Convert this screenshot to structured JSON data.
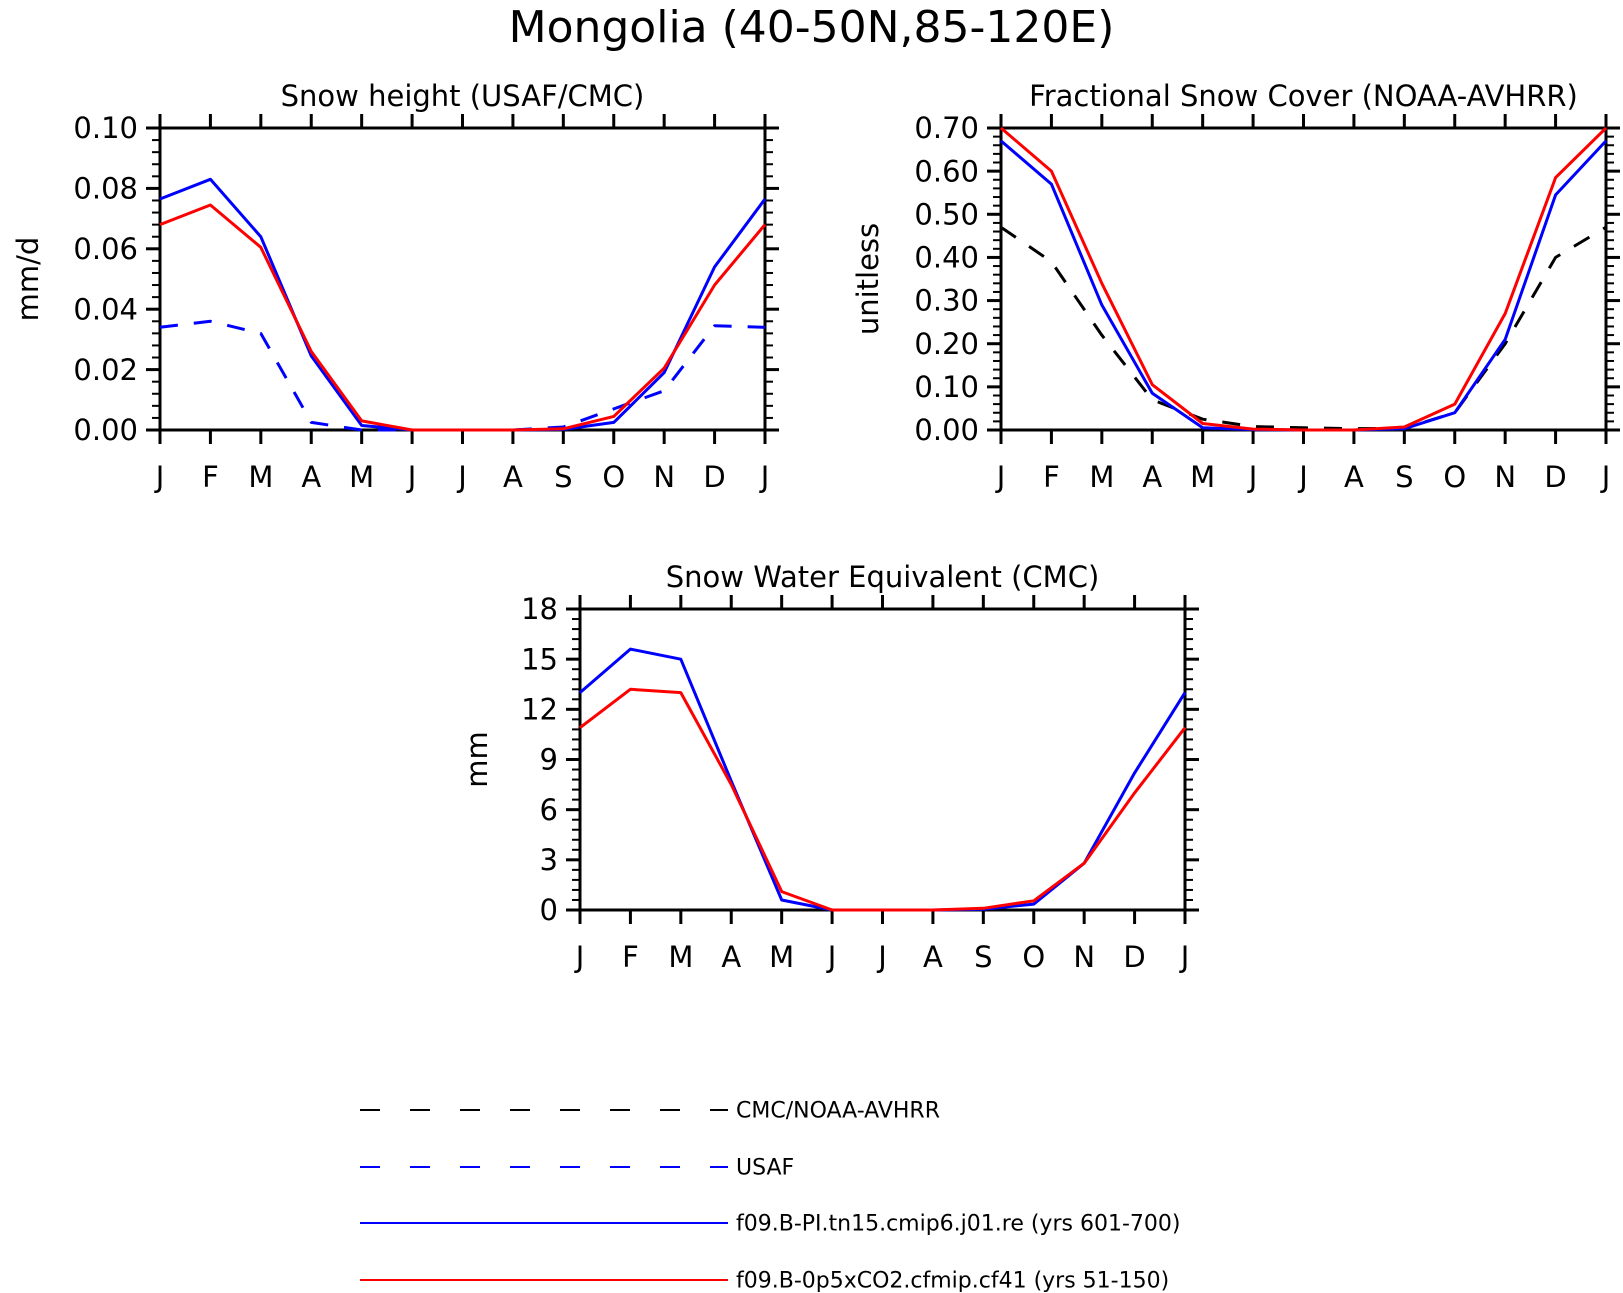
{
  "title": "Mongolia (40-50N,85-120E)",
  "colors": {
    "black": "#000000",
    "blue": "#0000ff",
    "red": "#ff0000"
  },
  "legend": [
    {
      "label": "CMC/NOAA-AVHRR",
      "color": "#000000",
      "dash": true
    },
    {
      "label": "USAF",
      "color": "#0000ff",
      "dash": true
    },
    {
      "label": "f09.B-PI.tn15.cmip6.j01.re (yrs 601-700)",
      "color": "#0000ff",
      "dash": false
    },
    {
      "label": "f09.B-0p5xCO2.cfmip.cf41 (yrs 51-150)",
      "color": "#ff0000",
      "dash": false
    }
  ],
  "chart_data": [
    {
      "type": "line",
      "title": "Snow height (USAF/CMC)",
      "ylabel": "mm/d",
      "xlabel": "",
      "ylim": [
        0,
        0.1
      ],
      "yticks": [
        "0.00",
        "0.02",
        "0.04",
        "0.06",
        "0.08",
        "0.10"
      ],
      "categories": [
        "J",
        "F",
        "M",
        "A",
        "M",
        "J",
        "J",
        "A",
        "S",
        "O",
        "N",
        "D",
        "J"
      ],
      "series": [
        {
          "name": "CMC/NOAA-AVHRR",
          "color": "#000000",
          "dash": true,
          "values": [
            0,
            0,
            0,
            0,
            0,
            0,
            0,
            0,
            0,
            0,
            0,
            0,
            0
          ]
        },
        {
          "name": "USAF",
          "color": "#0000ff",
          "dash": true,
          "values": [
            0.034,
            0.036,
            0.032,
            0.0025,
            0.0,
            0.0,
            0.0,
            0.0,
            0.001,
            0.007,
            0.013,
            0.0345,
            0.034
          ]
        },
        {
          "name": "f09.B-PI.tn15.cmip6.j01.re (yrs 601-700)",
          "color": "#0000ff",
          "dash": false,
          "values": [
            0.0765,
            0.083,
            0.064,
            0.0245,
            0.0015,
            0.0,
            0.0,
            0.0,
            0.0002,
            0.0025,
            0.019,
            0.054,
            0.0765
          ]
        },
        {
          "name": "f09.B-0p5xCO2.cfmip.cf41 (yrs 51-150)",
          "color": "#ff0000",
          "dash": false,
          "values": [
            0.068,
            0.0745,
            0.0605,
            0.026,
            0.003,
            0.0,
            0.0,
            0.0,
            0.0004,
            0.0045,
            0.0205,
            0.048,
            0.068
          ]
        }
      ]
    },
    {
      "type": "line",
      "title": "Fractional Snow Cover (NOAA-AVHRR)",
      "ylabel": "unitless",
      "xlabel": "",
      "ylim": [
        0,
        0.7
      ],
      "yticks": [
        "0.00",
        "0.10",
        "0.20",
        "0.30",
        "0.40",
        "0.50",
        "0.60",
        "0.70"
      ],
      "categories": [
        "J",
        "F",
        "M",
        "A",
        "M",
        "J",
        "J",
        "A",
        "S",
        "O",
        "N",
        "D",
        "J"
      ],
      "series": [
        {
          "name": "CMC/NOAA-AVHRR",
          "color": "#000000",
          "dash": true,
          "values": [
            0.47,
            0.39,
            0.22,
            0.07,
            0.025,
            0.008,
            0.005,
            0.003,
            0.004,
            0.04,
            0.2,
            0.4,
            0.47
          ]
        },
        {
          "name": "f09.B-PI.tn15.cmip6.j01.re (yrs 601-700)",
          "color": "#0000ff",
          "dash": false,
          "values": [
            0.67,
            0.57,
            0.29,
            0.085,
            0.005,
            0.001,
            0.0,
            0.0,
            0.003,
            0.04,
            0.21,
            0.545,
            0.67
          ]
        },
        {
          "name": "f09.B-0p5xCO2.cfmip.cf41 (yrs 51-150)",
          "color": "#ff0000",
          "dash": false,
          "values": [
            0.7,
            0.6,
            0.34,
            0.105,
            0.015,
            0.002,
            0.0,
            0.0,
            0.007,
            0.06,
            0.27,
            0.585,
            0.7
          ]
        }
      ]
    },
    {
      "type": "line",
      "title": "Snow Water Equivalent (CMC)",
      "ylabel": "mm",
      "xlabel": "",
      "ylim": [
        0,
        18
      ],
      "yticks": [
        "0",
        "3",
        "6",
        "9",
        "12",
        "15",
        "18"
      ],
      "categories": [
        "J",
        "F",
        "M",
        "A",
        "M",
        "J",
        "J",
        "A",
        "S",
        "O",
        "N",
        "D",
        "J"
      ],
      "series": [
        {
          "name": "CMC/NOAA-AVHRR",
          "color": "#000000",
          "dash": true,
          "values": [
            0,
            0,
            0,
            0,
            0,
            0,
            0,
            0,
            0,
            0,
            0,
            0,
            0
          ]
        },
        {
          "name": "f09.B-PI.tn15.cmip6.j01.re (yrs 601-700)",
          "color": "#0000ff",
          "dash": false,
          "values": [
            13.0,
            15.6,
            15.0,
            7.7,
            0.6,
            0.0,
            0.0,
            0.0,
            0.05,
            0.35,
            2.8,
            8.2,
            13.0
          ]
        },
        {
          "name": "f09.B-0p5xCO2.cfmip.cf41 (yrs 51-150)",
          "color": "#ff0000",
          "dash": false,
          "values": [
            10.9,
            13.2,
            13.0,
            7.5,
            1.1,
            0.0,
            0.0,
            0.0,
            0.1,
            0.55,
            2.8,
            7.0,
            10.9
          ]
        }
      ]
    }
  ]
}
